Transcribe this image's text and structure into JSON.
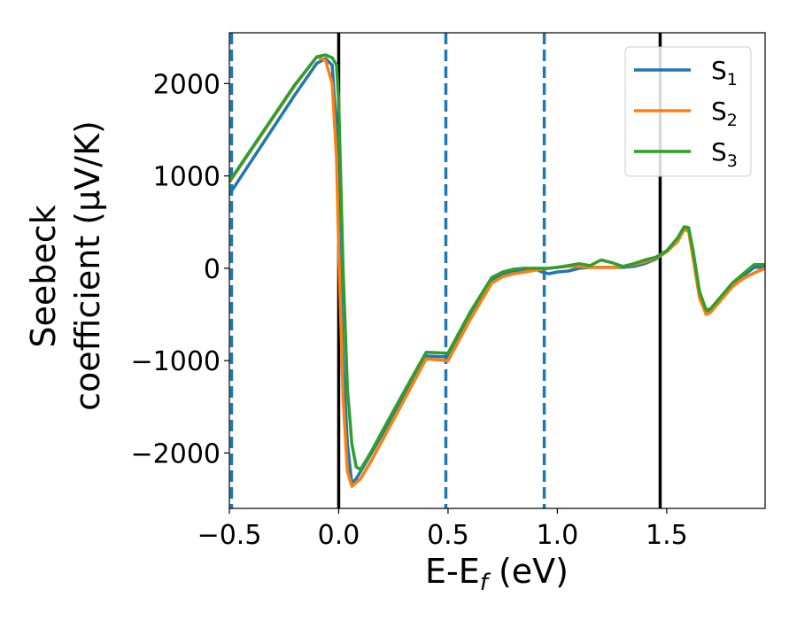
{
  "chart_data": {
    "type": "line",
    "xlabel_main": "E-E",
    "xlabel_sub": "f",
    "xlabel_unit": " (eV)",
    "ylabel_line1": "Seebeck",
    "ylabel_line2": "coefficient  (μV/K)",
    "xlim": [
      -0.5,
      1.95
    ],
    "ylim": [
      -2600,
      2550
    ],
    "x_ticks": [
      -0.5,
      0.0,
      0.5,
      1.0,
      1.5
    ],
    "x_tick_labels": [
      "−0.5",
      "0.0",
      "0.5",
      "1.0",
      "1.5"
    ],
    "y_ticks": [
      -2000,
      -1000,
      0,
      1000,
      2000
    ],
    "y_tick_labels": [
      "−2000",
      "−1000",
      "0",
      "1000",
      "2000"
    ],
    "grid": false,
    "legend_position": "top-right",
    "vlines_solid": [
      0.0,
      1.47
    ],
    "vlines_dashed": [
      -0.49,
      0.49,
      0.94
    ],
    "vline_colors": {
      "solid": "#000000",
      "dashed": "#1f77b4"
    },
    "series": [
      {
        "name": "S",
        "name_sub": "1",
        "color": "#1f77b4",
        "x": [
          -0.5,
          -0.4,
          -0.3,
          -0.2,
          -0.1,
          -0.06,
          -0.03,
          -0.01,
          0.0,
          0.02,
          0.04,
          0.06,
          0.08,
          0.1,
          0.15,
          0.2,
          0.3,
          0.4,
          0.5,
          0.6,
          0.7,
          0.75,
          0.8,
          0.85,
          0.9,
          0.93,
          0.96,
          1.0,
          1.05,
          1.1,
          1.15,
          1.2,
          1.25,
          1.3,
          1.35,
          1.4,
          1.45,
          1.5,
          1.55,
          1.58,
          1.6,
          1.62,
          1.65,
          1.68,
          1.7,
          1.75,
          1.8,
          1.85,
          1.9,
          1.95
        ],
        "y": [
          800,
          1160,
          1520,
          1880,
          2220,
          2270,
          2200,
          1500,
          500,
          -1000,
          -1900,
          -2330,
          -2280,
          -2200,
          -2000,
          -1790,
          -1370,
          -950,
          -960,
          -520,
          -130,
          -70,
          -40,
          -20,
          -10,
          -40,
          -60,
          -40,
          -30,
          0,
          10,
          10,
          10,
          10,
          20,
          50,
          100,
          180,
          300,
          420,
          410,
          150,
          -300,
          -480,
          -460,
          -320,
          -180,
          -80,
          10,
          10
        ]
      },
      {
        "name": "S",
        "name_sub": "2",
        "color": "#ff7f0e",
        "x": [
          -0.5,
          -0.4,
          -0.3,
          -0.2,
          -0.1,
          -0.06,
          -0.03,
          -0.01,
          0.0,
          0.02,
          0.04,
          0.06,
          0.08,
          0.1,
          0.15,
          0.2,
          0.3,
          0.4,
          0.5,
          0.6,
          0.7,
          0.75,
          0.8,
          0.85,
          0.9,
          0.93,
          0.96,
          1.0,
          1.05,
          1.1,
          1.15,
          1.2,
          1.25,
          1.3,
          1.35,
          1.4,
          1.45,
          1.5,
          1.55,
          1.58,
          1.6,
          1.62,
          1.65,
          1.68,
          1.7,
          1.75,
          1.8,
          1.85,
          1.9,
          1.95
        ],
        "y": [
          930,
          1280,
          1630,
          1980,
          2290,
          2250,
          2000,
          1200,
          200,
          -1400,
          -2200,
          -2360,
          -2320,
          -2280,
          -2080,
          -1860,
          -1420,
          -980,
          -1000,
          -560,
          -160,
          -90,
          -60,
          -40,
          -20,
          -10,
          0,
          10,
          20,
          20,
          10,
          10,
          10,
          20,
          40,
          70,
          110,
          180,
          290,
          420,
          400,
          120,
          -320,
          -500,
          -480,
          -340,
          -200,
          -110,
          -50,
          0
        ]
      },
      {
        "name": "S",
        "name_sub": "3",
        "color": "#2ca02c",
        "x": [
          -0.5,
          -0.4,
          -0.3,
          -0.2,
          -0.1,
          -0.06,
          -0.03,
          -0.01,
          0.0,
          0.02,
          0.04,
          0.06,
          0.08,
          0.1,
          0.15,
          0.2,
          0.3,
          0.4,
          0.5,
          0.6,
          0.7,
          0.75,
          0.8,
          0.85,
          0.9,
          0.93,
          0.96,
          1.0,
          1.05,
          1.1,
          1.15,
          1.2,
          1.25,
          1.3,
          1.35,
          1.4,
          1.45,
          1.5,
          1.55,
          1.58,
          1.6,
          1.62,
          1.65,
          1.68,
          1.7,
          1.75,
          1.8,
          1.85,
          1.9,
          1.95
        ],
        "y": [
          940,
          1290,
          1640,
          1990,
          2290,
          2310,
          2280,
          2200,
          1800,
          0,
          -1300,
          -1900,
          -2150,
          -2180,
          -1980,
          -1760,
          -1330,
          -910,
          -920,
          -480,
          -100,
          -40,
          -10,
          0,
          0,
          0,
          0,
          10,
          30,
          50,
          30,
          90,
          60,
          20,
          50,
          90,
          120,
          190,
          330,
          450,
          440,
          200,
          -250,
          -450,
          -440,
          -300,
          -160,
          -60,
          40,
          40
        ]
      }
    ]
  }
}
